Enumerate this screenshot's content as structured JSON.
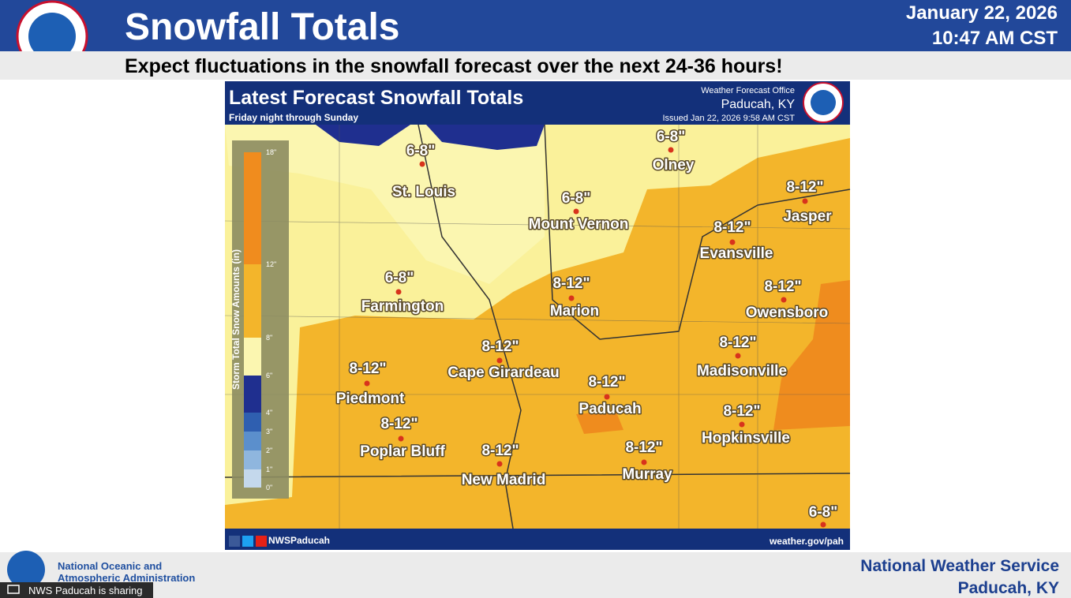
{
  "header": {
    "title": "Snowfall Totals",
    "date": "January 22, 2026",
    "time": "10:47 AM CST",
    "subtitle": "Expect fluctuations in the snowfall forecast over the next 24-36 hours!"
  },
  "map": {
    "title": "Latest Forecast Snowfall Totals",
    "period": "Friday night through Sunday",
    "office_label": "Weather Forecast Office",
    "office": "Paducah, KY",
    "issued": "Issued Jan 22, 2026 9:58 AM CST",
    "legend": {
      "title": "Storm Total Snow Amounts (in)",
      "ticks": [
        "18\"",
        "12\"",
        "8\"",
        "6\"",
        "4\"",
        "3\"",
        "2\"",
        "1\"",
        "0\""
      ]
    },
    "cities": [
      {
        "amount": "6-8\"",
        "name": "St. Louis"
      },
      {
        "amount": "6-8\"",
        "name": "Olney"
      },
      {
        "amount": "6-8\"",
        "name": "Mount Vernon"
      },
      {
        "amount": "8-12\"",
        "name": "Jasper"
      },
      {
        "amount": "8-12\"",
        "name": "Evansville"
      },
      {
        "amount": "6-8\"",
        "name": "Farmington"
      },
      {
        "amount": "8-12\"",
        "name": "Marion"
      },
      {
        "amount": "8-12\"",
        "name": "Owensboro"
      },
      {
        "amount": "8-12\"",
        "name": "Cape Girardeau"
      },
      {
        "amount": "8-12\"",
        "name": "Madisonville"
      },
      {
        "amount": "8-12\"",
        "name": "Piedmont"
      },
      {
        "amount": "8-12\"",
        "name": "Paducah"
      },
      {
        "amount": "8-12\"",
        "name": "Poplar Bluff"
      },
      {
        "amount": "8-12\"",
        "name": "Hopkinsville"
      },
      {
        "amount": "8-12\"",
        "name": "New Madrid"
      },
      {
        "amount": "8-12\"",
        "name": "Murray"
      },
      {
        "amount": "6-8\""
      }
    ],
    "social": "NWSPaducah",
    "website": "weather.gov/pah"
  },
  "footer": {
    "agency_line1": "National Oceanic and",
    "agency_line2": "Atmospheric Administration",
    "nws": "National Weather Service",
    "location": "Paducah, KY",
    "sharing": "NWS Paducah is sharing"
  }
}
